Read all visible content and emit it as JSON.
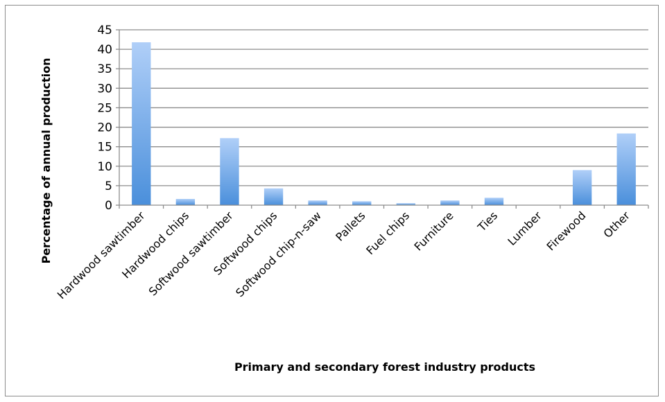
{
  "chart_data": {
    "type": "bar",
    "title": "",
    "xlabel": "Primary and secondary forest industry products",
    "ylabel": "Percentage of annual production",
    "categories": [
      "Hardwood sawtimber",
      "Hardwood chips",
      "Softwood sawtimber",
      "Softwood chips",
      "Softwood chip-n-saw",
      "Pallets",
      "Fuel chips",
      "Furniture",
      "Ties",
      "Lumber",
      "Firewood",
      "Other"
    ],
    "values": [
      41.8,
      1.6,
      17.2,
      4.3,
      1.2,
      1.0,
      0.5,
      1.2,
      1.9,
      0,
      9.0,
      18.4
    ],
    "ylim": [
      0,
      45
    ],
    "yticks": [
      "0",
      "5",
      "10",
      "15",
      "20",
      "25",
      "30",
      "35",
      "40",
      "45"
    ],
    "grid": true,
    "legend": "none",
    "colors": {
      "bar_top": "#b0cff8",
      "bar_bottom": "#4a8fdb",
      "grid": "#8c8c8c",
      "axis": "#8c8c8c"
    }
  }
}
